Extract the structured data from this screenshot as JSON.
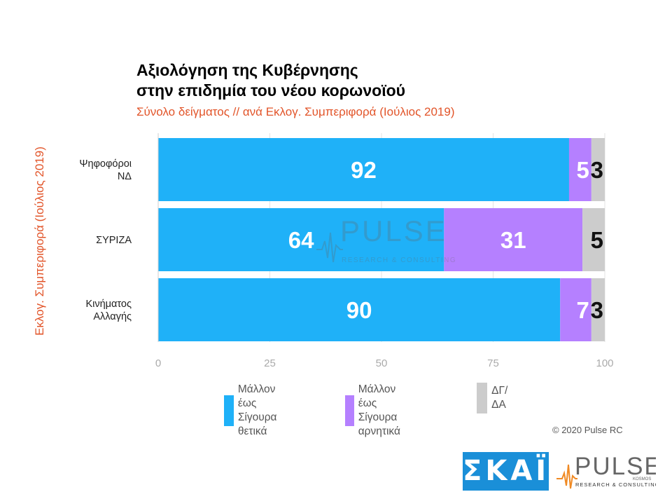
{
  "title_line1": "Αξιολόγηση της Κυβέρνησης",
  "title_line2": "στην επιδημία του νέου κορωνοϊού",
  "subtitle": "Σύνολο δείγματος // ανά Εκλογ. Συμπεριφορά (Ιούλιος 2019)",
  "copyright": "© 2020 Pulse RC",
  "skai_logo": "ΣΚΑΪ",
  "pulse_logo": {
    "word": "PULSE",
    "small": "KOSMOS",
    "tag": "RESEARCH & CONSULTING"
  },
  "chart_data": {
    "type": "bar",
    "orientation": "horizontal",
    "stacked": true,
    "title": "Αξιολόγηση της Κυβέρνησης στην επιδημία του νέου κορωνοϊού",
    "subtitle": "Σύνολο δείγματος // ανά Εκλογ. Συμπεριφορά (Ιούλιος 2019)",
    "ylabel": "Εκλογ. Συμπεριφορά (Ιούλιος 2019)",
    "xlim": [
      0,
      100
    ],
    "xticks": [
      0,
      25,
      50,
      75,
      100
    ],
    "categories": [
      [
        "Ψηφοφόροι",
        "ΝΔ"
      ],
      [
        "ΣΥΡΙΖΑ"
      ],
      [
        "Κινήματος",
        "Αλλαγής"
      ]
    ],
    "series": [
      {
        "name": "Μάλλον έως Σίγουρα θετικά",
        "legend_lines": [
          "Μάλλον έως",
          "Σίγουρα θετικά"
        ],
        "color": "#1fb1f8",
        "values": [
          92,
          64,
          90
        ]
      },
      {
        "name": "Μάλλον έως Σίγουρα αρνητικά",
        "legend_lines": [
          "Μάλλον έως",
          "Σίγουρα αρνητικά"
        ],
        "color": "#b580ff",
        "values": [
          5,
          31,
          7
        ]
      },
      {
        "name": "ΔΓ/ΔΑ",
        "legend_lines": [
          "ΔΓ/ΔΑ"
        ],
        "color": "#cccccc",
        "values": [
          3,
          5,
          3
        ]
      }
    ],
    "grid": true,
    "legend_position": "bottom"
  }
}
